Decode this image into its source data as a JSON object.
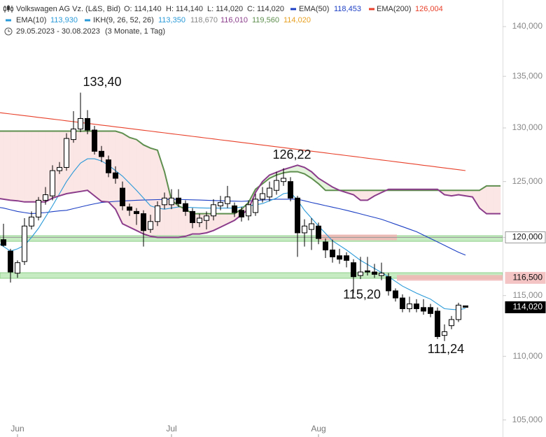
{
  "header": {
    "title": "Volkswagen AG Vz. (L&S, Bid)",
    "ohlc": [
      "O: 114,140",
      "H: 114,140",
      "L: 114,020",
      "C: 114,020"
    ],
    "series_last": [
      "126,004",
      "118,453",
      "113,930"
    ],
    "ikh": {
      "name": "IKH(9, 26, 52, 26)",
      "color": "#2a9ad8",
      "values": [
        "113,350",
        "118,670",
        "116,010",
        "119,560",
        "114,020"
      ],
      "value_colors": [
        "#2a9ad8",
        "#888888",
        "#8b3d8b",
        "#5f8f4f",
        "#e8a020"
      ]
    },
    "period": "29.05.2023 - 30.08.2023",
    "span": "(3 Monate, 1 Tag)"
  },
  "chart_data": {
    "type": "candlestick",
    "categories": [
      null,
      null,
      null,
      "Jun",
      null,
      null,
      null,
      null,
      null,
      null,
      null,
      null,
      null,
      null,
      null,
      null,
      null,
      null,
      null,
      null,
      null,
      null,
      null,
      null,
      null,
      "Jul",
      null,
      null,
      null,
      null,
      null,
      null,
      null,
      null,
      null,
      null,
      null,
      null,
      null,
      null,
      null,
      null,
      null,
      null,
      null,
      null,
      "Aug",
      null,
      null,
      null,
      null,
      null,
      null,
      null,
      null,
      null,
      null,
      null,
      null,
      null,
      null,
      null,
      null,
      null,
      null,
      null,
      null,
      null,
      null,
      null,
      null,
      null,
      null
    ],
    "open": [
      120200,
      119800,
      118800,
      116900,
      117900,
      121000,
      121800,
      123300,
      123700,
      126000,
      126300,
      128900,
      129900,
      130900,
      129800,
      127800,
      127000,
      125800,
      124400,
      122700,
      122300,
      122100,
      120700,
      121400,
      122900,
      122900,
      123500,
      123000,
      122300,
      121300,
      121500,
      121900,
      122800,
      123000,
      122800,
      122400,
      121900,
      122200,
      123400,
      123600,
      124200,
      125000,
      125000,
      123500,
      120400,
      120700,
      121000,
      119600,
      118900,
      118400,
      118400,
      117800,
      116700,
      117100,
      117000,
      116700,
      116600,
      115400,
      114800,
      113900,
      114300,
      114000,
      114000,
      113700,
      111700,
      112500,
      113000,
      114140,
      null,
      null,
      null,
      null,
      null
    ],
    "high": [
      120500,
      121200,
      119000,
      118000,
      121700,
      122300,
      123600,
      124500,
      126500,
      126800,
      129500,
      131600,
      133400,
      131700,
      130200,
      128300,
      127400,
      126400,
      125000,
      123000,
      122600,
      122400,
      122000,
      123200,
      124000,
      124300,
      124300,
      123300,
      122600,
      122100,
      122300,
      123400,
      123700,
      124600,
      123100,
      122700,
      123300,
      123900,
      124500,
      125000,
      125900,
      126220,
      125400,
      123700,
      121600,
      121700,
      121300,
      119900,
      119800,
      119000,
      118700,
      118100,
      118300,
      118300,
      117700,
      117800,
      116900,
      115600,
      115100,
      114900,
      114700,
      114700,
      114300,
      114000,
      112600,
      113300,
      114400,
      114140,
      null,
      null,
      null,
      null,
      null
    ],
    "low": [
      119600,
      119200,
      116100,
      116500,
      117600,
      120700,
      121500,
      122900,
      123300,
      125700,
      126000,
      128600,
      129600,
      129400,
      127500,
      126800,
      125400,
      124800,
      122400,
      121900,
      121100,
      119200,
      120400,
      121000,
      122500,
      122500,
      122700,
      121900,
      120800,
      120900,
      120700,
      121500,
      122400,
      122600,
      121800,
      121400,
      121500,
      121900,
      123100,
      123200,
      123800,
      124600,
      123200,
      118300,
      119200,
      118900,
      119400,
      118200,
      117800,
      117700,
      117400,
      115200,
      116400,
      116700,
      116500,
      116300,
      115000,
      114500,
      113600,
      113600,
      113600,
      113400,
      113200,
      111400,
      111240,
      112200,
      112800,
      114020,
      null,
      null,
      null,
      null,
      null
    ],
    "close": [
      119800,
      119300,
      117000,
      117800,
      121000,
      121800,
      123300,
      123800,
      126000,
      126300,
      129000,
      129900,
      130900,
      129800,
      127800,
      127300,
      125800,
      125300,
      122800,
      122400,
      122100,
      120600,
      121400,
      122800,
      123500,
      123500,
      123000,
      122300,
      121300,
      121700,
      121900,
      122900,
      123100,
      123600,
      122200,
      121800,
      122900,
      123400,
      123900,
      124400,
      125100,
      125300,
      123500,
      120400,
      121000,
      121200,
      119900,
      118900,
      118300,
      118100,
      118000,
      116600,
      117000,
      117000,
      116800,
      116900,
      115400,
      114800,
      113900,
      114300,
      113900,
      113700,
      113500,
      111600,
      112000,
      113000,
      114200,
      114020,
      null,
      null,
      null,
      null,
      null
    ],
    "series": [
      {
        "name": "EMA(200)",
        "color": "#e8402a",
        "values": [
          131500,
          131418,
          131336,
          131254,
          131172,
          131090,
          131008,
          130926,
          130844,
          130762,
          130680,
          130598,
          130516,
          130434,
          130352,
          130270,
          130188,
          130106,
          130024,
          129942,
          129860,
          129778,
          129696,
          129614,
          129532,
          129450,
          129368,
          129286,
          129204,
          129122,
          129040,
          128958,
          128876,
          128794,
          128712,
          128630,
          128548,
          128466,
          128384,
          128302,
          128220,
          128138,
          128056,
          127974,
          127892,
          127810,
          127728,
          127646,
          127564,
          127482,
          127400,
          127318,
          127236,
          127154,
          127072,
          126990,
          126908,
          126826,
          126744,
          126662,
          126580,
          126498,
          126416,
          126334,
          126252,
          126170,
          126088,
          126004,
          null,
          null,
          null,
          null,
          null
        ]
      },
      {
        "name": "EMA(50)",
        "color": "#1c3fc4",
        "values": [
          122700,
          122600,
          122450,
          122300,
          122200,
          122100,
          122150,
          122200,
          122280,
          122350,
          122400,
          122550,
          122700,
          122850,
          122980,
          123100,
          123150,
          123200,
          123240,
          123270,
          123300,
          123320,
          123340,
          123360,
          123380,
          123400,
          123380,
          123360,
          123340,
          123320,
          123300,
          123280,
          123260,
          123240,
          123220,
          123200,
          123240,
          123280,
          123320,
          123360,
          123400,
          123400,
          123400,
          123400,
          123250,
          123100,
          122960,
          122820,
          122680,
          122540,
          122400,
          122240,
          122080,
          121920,
          121760,
          121600,
          121380,
          121160,
          120940,
          120720,
          120500,
          120200,
          119900,
          119600,
          119300,
          119000,
          118700,
          118453,
          null,
          null,
          null,
          null,
          null
        ]
      },
      {
        "name": "EMA(10)",
        "color": "#2a9ad8",
        "values": [
          119600,
          119200,
          118800,
          119000,
          119300,
          120000,
          120800,
          121800,
          122800,
          123900,
          125000,
          125900,
          126700,
          127100,
          127100,
          126900,
          126500,
          126000,
          125500,
          124850,
          124200,
          123500,
          122800,
          122600,
          122500,
          122600,
          122700,
          122670,
          122650,
          122620,
          122600,
          122600,
          122600,
          122600,
          122600,
          122700,
          122800,
          122900,
          123000,
          123250,
          123500,
          123900,
          124000,
          123300,
          122400,
          121700,
          121000,
          120350,
          119700,
          119300,
          118900,
          118450,
          118000,
          117650,
          117300,
          116950,
          116600,
          116200,
          115800,
          115500,
          115200,
          114950,
          114700,
          114300,
          113900,
          113850,
          113800,
          113930,
          null,
          null,
          null,
          null,
          null
        ]
      },
      {
        "color": "#5f8f4f",
        "values": [
          129700,
          129700,
          129700,
          129700,
          129700,
          129700,
          129700,
          129700,
          129700,
          129700,
          129700,
          129700,
          129700,
          129700,
          129700,
          129700,
          129700,
          129700,
          129500,
          129100,
          128900,
          128400,
          128100,
          127900,
          125900,
          123300,
          122800,
          122500,
          122100,
          122100,
          122100,
          122100,
          122100,
          122100,
          122100,
          122500,
          123100,
          124300,
          124800,
          125300,
          125600,
          125800,
          125900,
          125900,
          125700,
          125300,
          124800,
          124200,
          124200,
          124200,
          124200,
          124200,
          124200,
          124200,
          124200,
          124200,
          124200,
          124200,
          124200,
          124200,
          124200,
          124200,
          124200,
          124200,
          124200,
          124200,
          124200,
          124200,
          124200,
          124200,
          124600,
          124600,
          124600
        ]
      },
      {
        "color": "#8b3d8b",
        "values": [
          123500,
          123400,
          123300,
          123250,
          123150,
          123150,
          123150,
          123150,
          123500,
          123700,
          123900,
          124000,
          124100,
          124200,
          123700,
          123200,
          123150,
          122500,
          121200,
          120900,
          120600,
          120300,
          120100,
          120000,
          120000,
          120000,
          120000,
          120100,
          120300,
          120300,
          120400,
          120600,
          120900,
          121200,
          121500,
          122000,
          122500,
          124000,
          125000,
          125600,
          125850,
          126100,
          126300,
          126500,
          126300,
          125900,
          125300,
          124900,
          124500,
          124200,
          124000,
          123800,
          123300,
          123300,
          123700,
          124000,
          124300,
          124300,
          124300,
          124300,
          124300,
          124300,
          124300,
          124300,
          123800,
          123700,
          123800,
          123700,
          123600,
          122600,
          122100,
          122100,
          122100
        ]
      }
    ],
    "cloud_fill": [
      "#fbe5e5",
      "#e3f3dc"
    ],
    "support_zones": [
      119900,
      116700
    ],
    "resistance_zones": [
      120000,
      116500
    ],
    "price_markers": [
      {
        "value": 120000,
        "label": "120,000",
        "fill": "#ffffff",
        "line": true
      },
      {
        "value": 116500,
        "label": "116,500",
        "fill": "#f4c4c4",
        "line": false
      },
      {
        "value": 114020,
        "label": "114,020",
        "fill": "#000000",
        "line": false
      }
    ],
    "annotations": [
      "133,40",
      "126,22",
      "115,20",
      "111,24"
    ],
    "log_scale": true,
    "ylim": [
      103700,
      142750
    ],
    "yticks": [
      {
        "value": 105000,
        "label": "105,000"
      },
      {
        "value": 110000,
        "label": "110,000"
      },
      {
        "value": 115000,
        "label": "115,000"
      },
      {
        "value": 120000,
        "label": "120,000"
      },
      {
        "value": 125000,
        "label": "125,000"
      },
      {
        "value": 130000,
        "label": "130,000"
      },
      {
        "value": 135000,
        "label": "135,000"
      },
      {
        "value": 140000,
        "label": "140,000"
      }
    ]
  }
}
